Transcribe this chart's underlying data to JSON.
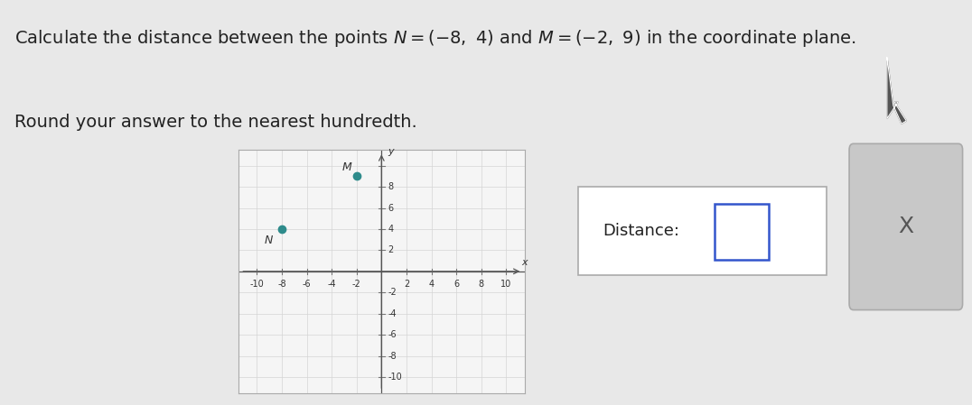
{
  "title_line1": "Calculate the distance between the points $N=(-8, 4)$ and $M=(-2, 9)$ in the coordinate plane.",
  "title_line2": "Round your answer to the nearest hundredth.",
  "point_N": [
    -8,
    4
  ],
  "point_M": [
    -2,
    9
  ],
  "point_color": "#2e8b8b",
  "label_N": "N",
  "label_M": "M",
  "axis_label_x": "x",
  "axis_label_y": "y",
  "xlim": [
    -11.5,
    11.5
  ],
  "ylim": [
    -11.5,
    11.5
  ],
  "xticks": [
    -10,
    -8,
    -6,
    -4,
    -2,
    2,
    4,
    6,
    8,
    10
  ],
  "yticks": [
    -10,
    -8,
    -6,
    -4,
    -2,
    2,
    4,
    6,
    8
  ],
  "bg_color": "#e8e8e8",
  "plot_bg": "#f5f5f5",
  "plot_border": "#aaaaaa",
  "axis_line_color": "#555555",
  "tick_line_color": "#777777",
  "distance_label": "Distance:",
  "dist_box_bg": "#ffffff",
  "dist_box_border": "#aaaaaa",
  "input_box_border": "#3355cc",
  "cross_bg": "#c8c8c8",
  "cross_border": "#aaaaaa",
  "cross_text": "X",
  "tick_fontsize": 7,
  "label_fontsize": 8,
  "title_fontsize": 14,
  "subtitle_fontsize": 14
}
